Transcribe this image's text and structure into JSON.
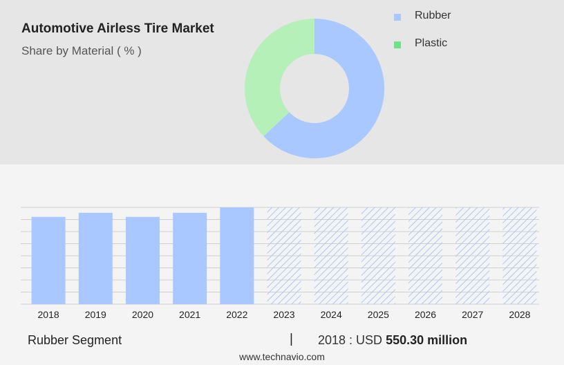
{
  "header": {
    "title": "Automotive Airless Tire Market",
    "subtitle": "Share by Material ( % )"
  },
  "chart_data": [
    {
      "type": "pie",
      "labels": [
        "Rubber",
        "Plastic"
      ],
      "values": [
        63,
        37
      ],
      "colors": [
        "#a8c8ff",
        "#b5f0b8"
      ],
      "legend_colors": [
        "#a8c8ff",
        "#6fe08a"
      ],
      "donut": true,
      "legend": "right"
    },
    {
      "type": "bar",
      "categories": [
        "2018",
        "2019",
        "2020",
        "2021",
        "2022",
        "2023",
        "2024",
        "2025",
        "2026",
        "2027",
        "2028"
      ],
      "values": [
        550.3,
        576,
        550,
        576,
        610,
        null,
        null,
        null,
        null,
        null,
        null
      ],
      "forecast_years": [
        "2023",
        "2024",
        "2025",
        "2026",
        "2027",
        "2028"
      ],
      "ylim": [
        0,
        610
      ],
      "bar_color": "#a8c8ff",
      "forecast_hatch_color": "#a8c8ff",
      "grid": true
    }
  ],
  "footer": {
    "segment_label": "Rubber Segment",
    "divider": "|",
    "value_prefix": "2018 : USD",
    "value_amount": "550.30 million",
    "source": "www.technavio.com"
  }
}
